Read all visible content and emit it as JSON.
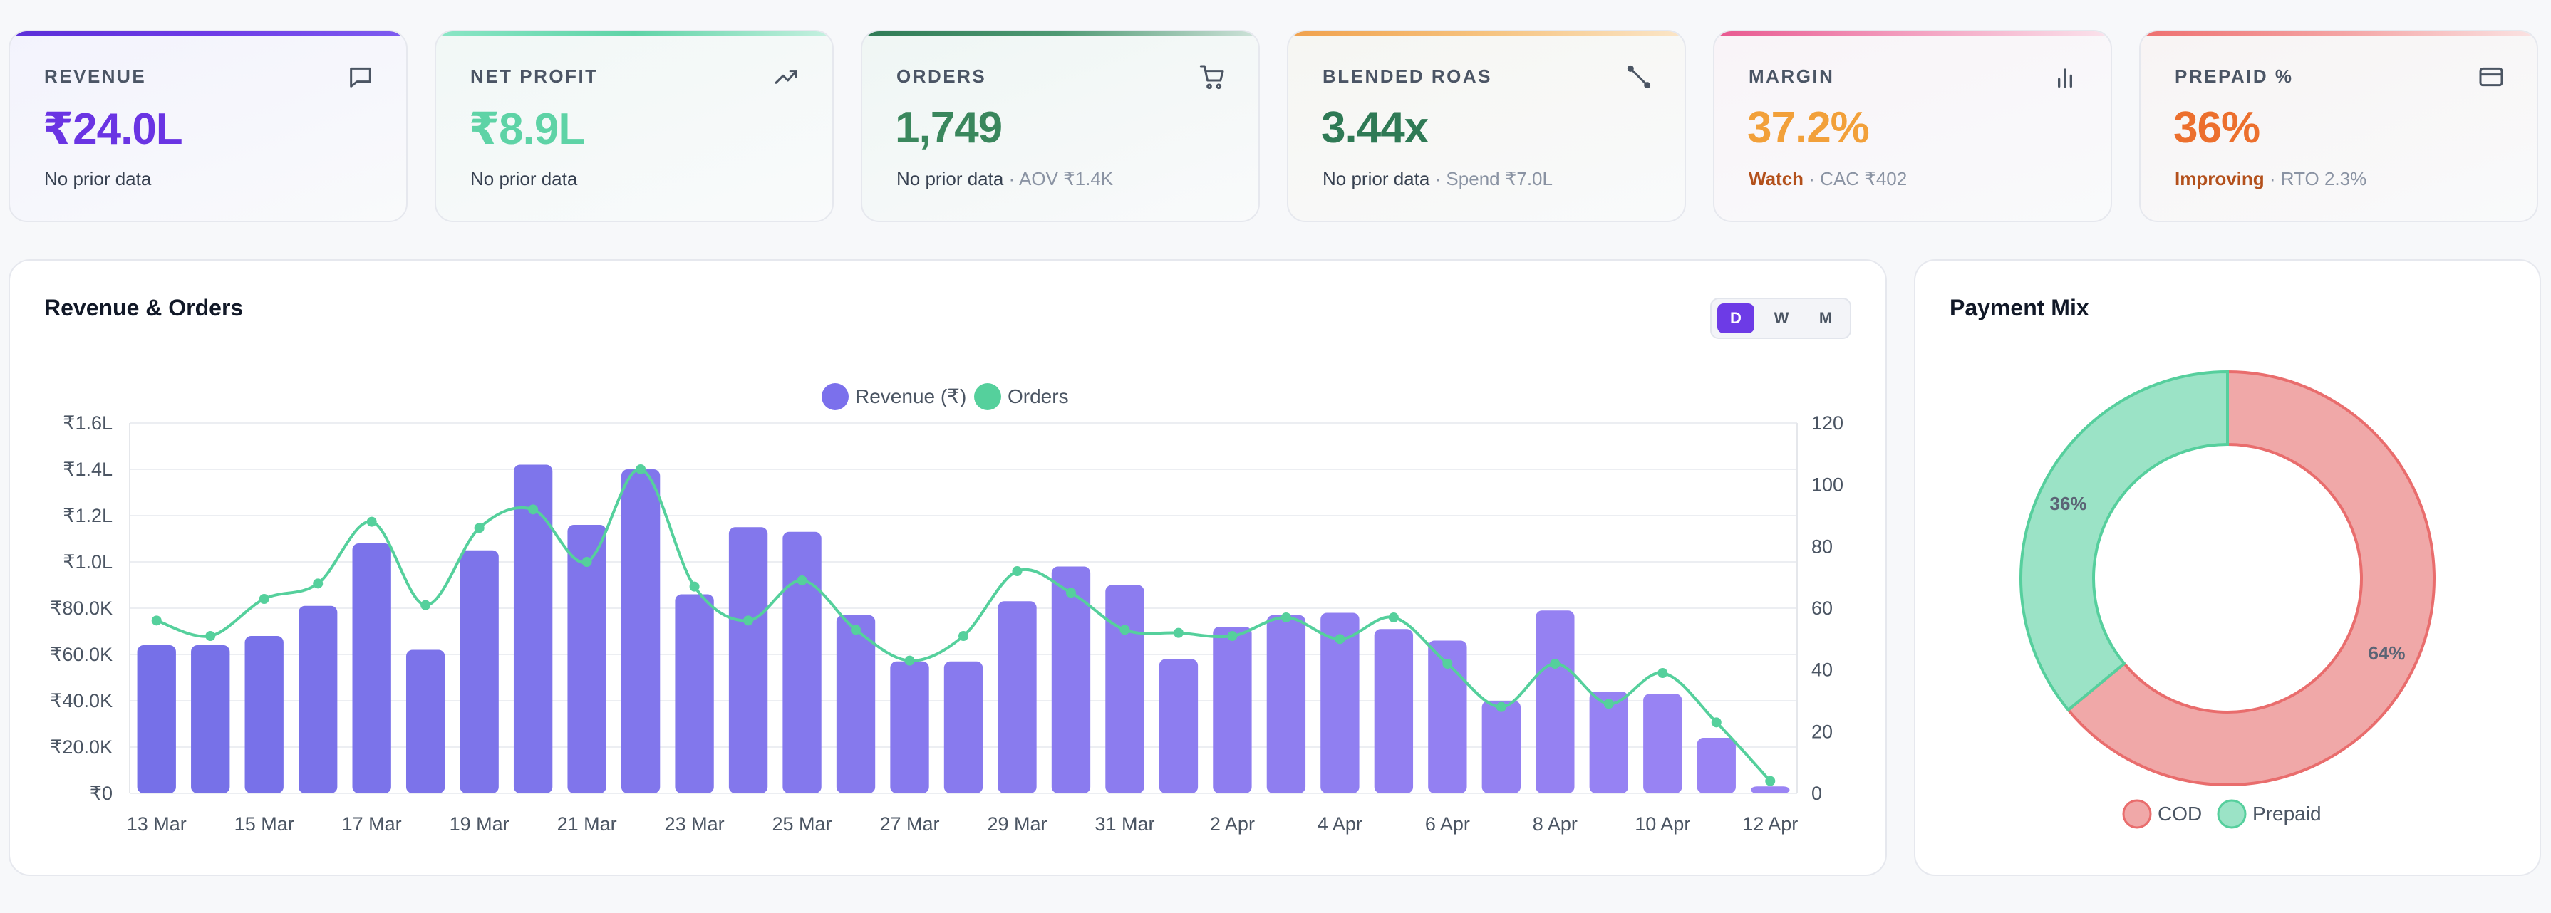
{
  "kpis": [
    {
      "label": "REVENUE",
      "value": "₹24.0L",
      "sub": "No prior data",
      "status": "",
      "extra": "",
      "icon": "chat-icon",
      "accent": "#6d3be6",
      "value_color": "#6a34e3",
      "bg": "#f3f3fd"
    },
    {
      "label": "NET PROFIT",
      "value": "₹8.9L",
      "sub": "No prior data",
      "status": "",
      "extra": "",
      "icon": "trending-up-icon",
      "accent": "#6fe0b3",
      "value_color": "#5ed3a6",
      "bg": "#f1f8f6"
    },
    {
      "label": "ORDERS",
      "value": "1,749",
      "sub": "No prior data",
      "status": "",
      "extra": "· AOV ₹1.4K",
      "icon": "cart-icon",
      "accent": "#3f8a62",
      "value_color": "#3a875d",
      "bg": "#eff6f4"
    },
    {
      "label": "BLENDED ROAS",
      "value": "3.44x",
      "sub": "No prior data",
      "status": "",
      "extra": "· Spend ₹7.0L",
      "icon": "link-icon",
      "accent": "#f0a04b",
      "value_color": "#2f7a55",
      "bg": "#f6f6f2"
    },
    {
      "label": "MARGIN",
      "value": "37.2%",
      "sub": "",
      "status": "Watch",
      "extra": "· CAC ₹402",
      "icon": "bar-chart-icon",
      "accent": "#e8578f",
      "value_color": "#f2a03a",
      "bg": "#f9f4f8"
    },
    {
      "label": "PREPAID %",
      "value": "36%",
      "sub": "",
      "status": "Improving",
      "extra": "· RTO 2.3%",
      "icon": "card-icon",
      "accent": "#ee6f6f",
      "value_color": "#ec6f2d",
      "bg": "#f8f4f4"
    }
  ],
  "revenue_panel": {
    "title": "Revenue & Orders",
    "toggle": [
      "D",
      "W",
      "M"
    ],
    "active": "D"
  },
  "payment_panel": {
    "title": "Payment Mix"
  },
  "colors": {
    "revenue_bar": "#7b70ec",
    "orders_line": "#55d09c",
    "cod": "#f0a8a8",
    "cod_stroke": "#e96d6d",
    "prepaid": "#9be3c6",
    "prepaid_stroke": "#56cf9d",
    "status_warn": "#b3501b"
  },
  "chart_data": [
    {
      "type": "bar",
      "title": "",
      "x_tick_labels": [
        "13 Mar",
        "15 Mar",
        "17 Mar",
        "19 Mar",
        "21 Mar",
        "23 Mar",
        "25 Mar",
        "27 Mar",
        "29 Mar",
        "31 Mar",
        "2 Apr",
        "4 Apr",
        "6 Apr",
        "8 Apr",
        "10 Apr",
        "12 Apr"
      ],
      "categories": [
        "13 Mar",
        "14 Mar",
        "15 Mar",
        "16 Mar",
        "17 Mar",
        "18 Mar",
        "19 Mar",
        "20 Mar",
        "21 Mar",
        "22 Mar",
        "23 Mar",
        "24 Mar",
        "25 Mar",
        "26 Mar",
        "27 Mar",
        "28 Mar",
        "29 Mar",
        "30 Mar",
        "31 Mar",
        "1 Apr",
        "2 Apr",
        "3 Apr",
        "4 Apr",
        "5 Apr",
        "6 Apr",
        "7 Apr",
        "8 Apr",
        "9 Apr",
        "10 Apr",
        "11 Apr",
        "12 Apr"
      ],
      "series": [
        {
          "name": "Revenue (₹)",
          "axis": "left",
          "type": "bar",
          "values": [
            64000,
            64000,
            68000,
            81000,
            108000,
            62000,
            105000,
            142000,
            116000,
            140000,
            86000,
            115000,
            113000,
            77000,
            57000,
            57000,
            83000,
            98000,
            90000,
            58000,
            72000,
            77000,
            78000,
            71000,
            66000,
            40000,
            79000,
            44000,
            43000,
            24000,
            3000
          ]
        },
        {
          "name": "Orders",
          "axis": "right",
          "type": "line",
          "values": [
            56,
            51,
            63,
            68,
            88,
            61,
            86,
            92,
            75,
            105,
            67,
            56,
            69,
            53,
            43,
            51,
            72,
            65,
            53,
            52,
            51,
            57,
            50,
            57,
            42,
            28,
            42,
            29,
            39,
            23,
            4
          ]
        }
      ],
      "y_left": {
        "min": 0,
        "max": 160000,
        "ticks": [
          "₹0",
          "₹20.0K",
          "₹40.0K",
          "₹60.0K",
          "₹80.0K",
          "₹1.0L",
          "₹1.2L",
          "₹1.4L",
          "₹1.6L"
        ]
      },
      "y_right": {
        "min": 0,
        "max": 120,
        "ticks": [
          "0",
          "20",
          "40",
          "60",
          "80",
          "100",
          "120"
        ]
      },
      "legend": "top-center",
      "grid": true
    },
    {
      "type": "pie",
      "title": "",
      "variant": "doughnut",
      "categories": [
        "COD",
        "Prepaid"
      ],
      "values": [
        64,
        36
      ],
      "labels": [
        "64%",
        "36%"
      ],
      "legend": "bottom"
    }
  ]
}
